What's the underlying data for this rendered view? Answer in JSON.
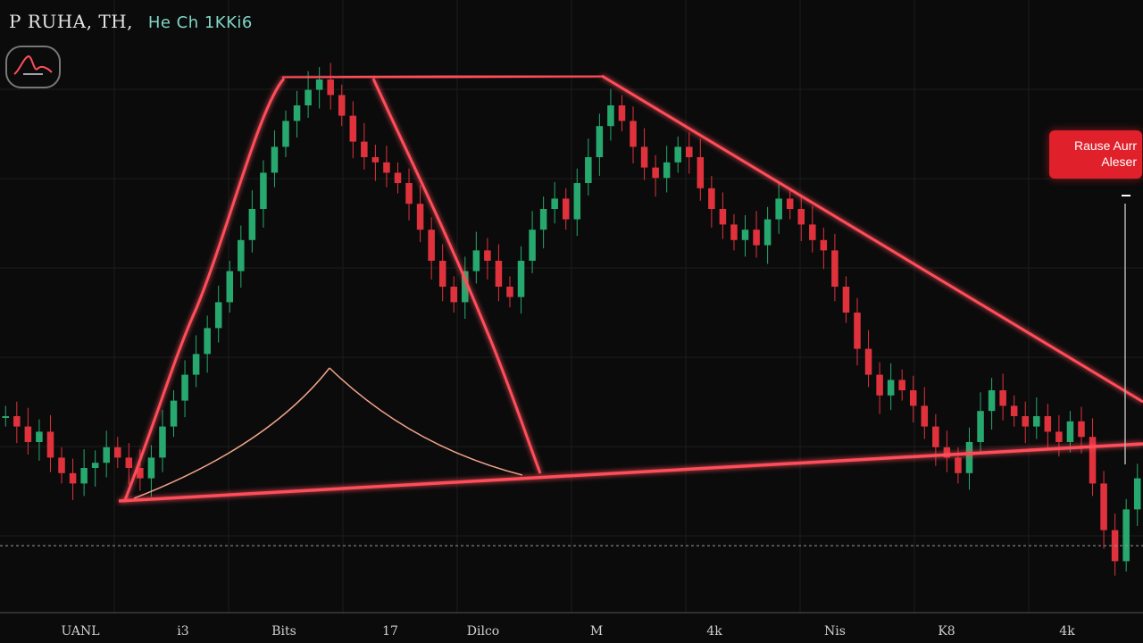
{
  "header": {
    "title_main": "P RUHA, TH,",
    "title_secondary": "He Ch 1KKi6"
  },
  "alert": {
    "line1": "Rause Aurr",
    "line2": "Aleser"
  },
  "colors": {
    "background": "#0b0b0b",
    "grid": "#1c1c1c",
    "bull": "#27a86e",
    "bear": "#e0323c",
    "overlay_line": "#ff4d5a",
    "overlay_glow": "#ff2a3a",
    "alert_bg": "#e0202a"
  },
  "chart_data": {
    "type": "candlestick",
    "title": "",
    "xlabel": "",
    "ylabel": "",
    "x_tick_labels": [
      "UANL",
      "i3",
      "Bits",
      "17",
      "Dilco",
      "M",
      "4k",
      "Nis",
      "K8",
      "4k"
    ],
    "grid": true,
    "price_line": {
      "value": 0.05,
      "style": "dashed"
    },
    "ylim": [
      0,
      1
    ],
    "series": [
      {
        "values": [
          0.3,
          0.28,
          0.25,
          0.27,
          0.22,
          0.19,
          0.17,
          0.2,
          0.21,
          0.24,
          0.22,
          0.2,
          0.18,
          0.22,
          0.28,
          0.33,
          0.38,
          0.42,
          0.47,
          0.52,
          0.58,
          0.64,
          0.7,
          0.77,
          0.82,
          0.87,
          0.9,
          0.93,
          0.95,
          0.92,
          0.88,
          0.83,
          0.8,
          0.79,
          0.77,
          0.75,
          0.71,
          0.66,
          0.6,
          0.55,
          0.52,
          0.58,
          0.62,
          0.6,
          0.55,
          0.53,
          0.6,
          0.66,
          0.7,
          0.72,
          0.68,
          0.75,
          0.8,
          0.86,
          0.9,
          0.87,
          0.82,
          0.78,
          0.76,
          0.79,
          0.82,
          0.8,
          0.74,
          0.7,
          0.67,
          0.64,
          0.66,
          0.63,
          0.68,
          0.72,
          0.7,
          0.67,
          0.64,
          0.62,
          0.55,
          0.5,
          0.43,
          0.38,
          0.34,
          0.37,
          0.35,
          0.32,
          0.28,
          0.24,
          0.22,
          0.19,
          0.25,
          0.31,
          0.35,
          0.32,
          0.3,
          0.28,
          0.3,
          0.27,
          0.25,
          0.29,
          0.26,
          0.17,
          0.08,
          0.02,
          0.12,
          0.18
        ]
      }
    ],
    "overlay_lines": [
      {
        "name": "neckline",
        "points": [
          [
            0.104,
            0.2
          ],
          [
            1.0,
            0.31
          ]
        ]
      },
      {
        "name": "descending-trend",
        "points": [
          [
            0.527,
            0.96
          ],
          [
            1.0,
            0.41
          ]
        ]
      },
      {
        "name": "top-flat",
        "points": [
          [
            0.247,
            0.96
          ],
          [
            0.527,
            0.96
          ]
        ]
      }
    ]
  }
}
